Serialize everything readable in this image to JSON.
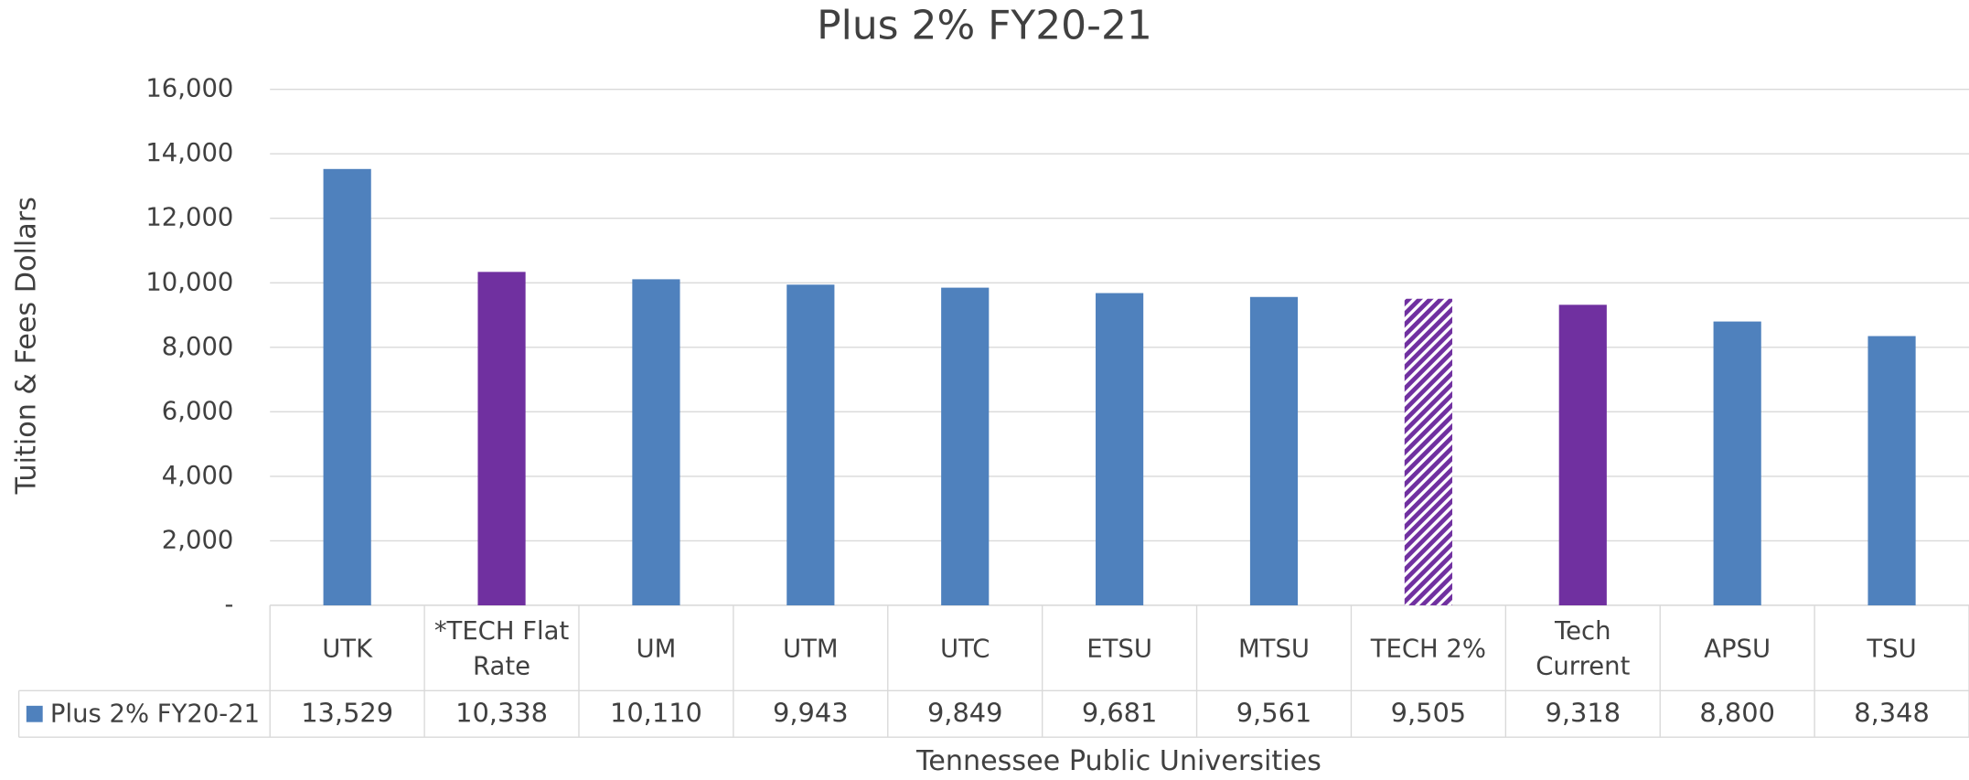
{
  "chart_data": {
    "type": "bar",
    "title": "Plus 2% FY20-21",
    "x_label": "Tennessee Public Universities",
    "y_label": "Tuition & Fees Dollars",
    "categories": [
      "UTK",
      "*TECH Flat Rate",
      "UM",
      "UTM",
      "UTC",
      "ETSU",
      "MTSU",
      "TECH 2%",
      "Tech Current",
      "APSU",
      "TSU"
    ],
    "series": [
      {
        "name": "Plus 2% FY20-21",
        "color": "#4f81bd",
        "values": [
          13529,
          10338,
          10110,
          9943,
          9849,
          9681,
          9561,
          9505,
          9318,
          8800,
          8348
        ],
        "value_labels": [
          "13,529",
          "10,338",
          "10,110",
          "9,943",
          "9,849",
          "9,681",
          "9,561",
          "9,505",
          "9,318",
          "8,800",
          "8,348"
        ],
        "bar_colors": [
          "#4f81bd",
          "#7030a0",
          "#4f81bd",
          "#4f81bd",
          "#4f81bd",
          "#4f81bd",
          "#4f81bd",
          "#7030a0",
          "#7030a0",
          "#4f81bd",
          "#4f81bd"
        ],
        "bar_fills": [
          "solid",
          "solid",
          "solid",
          "solid",
          "solid",
          "solid",
          "solid",
          "hatched",
          "solid",
          "solid",
          "solid"
        ]
      }
    ],
    "ylim": [
      0,
      16000
    ],
    "yticks": [
      {
        "value": 0,
        "label": "-"
      },
      {
        "value": 2000,
        "label": "2,000"
      },
      {
        "value": 4000,
        "label": "4,000"
      },
      {
        "value": 6000,
        "label": "6,000"
      },
      {
        "value": 8000,
        "label": "8,000"
      },
      {
        "value": 10000,
        "label": "10,000"
      },
      {
        "value": 12000,
        "label": "12,000"
      },
      {
        "value": 14000,
        "label": "14,000"
      },
      {
        "value": 16000,
        "label": "16,000"
      }
    ],
    "grid": true,
    "data_table": true
  }
}
